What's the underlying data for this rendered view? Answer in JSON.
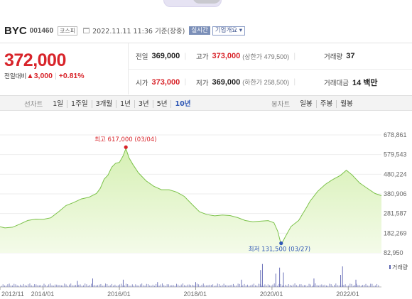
{
  "stock": {
    "name": "BYC",
    "code": "001460",
    "market": "코스피",
    "datetime": "2022.11.11 11:36",
    "basis": "기준(장중)",
    "realtime_badge": "실시간",
    "company_menu": "기업개요 ▾"
  },
  "quote": {
    "price": "372,000",
    "change_label": "전일대비",
    "change_arrow": "▲",
    "change_amount": "3,000",
    "change_pct": "+0.81%",
    "stats": [
      [
        {
          "label": "전일",
          "value": "369,000",
          "sub": "",
          "up": false
        },
        {
          "label": "고가",
          "value": "373,000",
          "sub": "(상한가 479,500)",
          "up": true
        },
        {
          "label": "거래량",
          "value": "37",
          "sub": "",
          "up": false
        }
      ],
      [
        {
          "label": "시가",
          "value": "373,000",
          "sub": "",
          "up": true
        },
        {
          "label": "저가",
          "value": "369,000",
          "sub": "(하한가 258,500)",
          "up": false
        },
        {
          "label": "거래대금",
          "value": "14 백만",
          "sub": "",
          "up": false
        }
      ]
    ]
  },
  "periods": {
    "line_label": "선차트",
    "line_items": [
      "1일",
      "1주일",
      "3개월",
      "1년",
      "3년",
      "5년",
      "10년"
    ],
    "active": "10년",
    "candle_label": "봉차트",
    "candle_items": [
      "일봉",
      "주봉",
      "월봉"
    ]
  },
  "chart_data": {
    "type": "area",
    "title": "",
    "x_tick_labels": [
      "2012/11",
      "2014/01",
      "2016/01",
      "2018/01",
      "2020/01",
      "2022/01"
    ],
    "x_tick_years": [
      2012.87,
      2014.0,
      2016.0,
      2018.0,
      2020.0,
      2022.0
    ],
    "xlim": [
      2012.87,
      2022.87
    ],
    "y_tick_labels": [
      "678,861",
      "579,543",
      "480,224",
      "380,906",
      "281,587",
      "182,269",
      "82,950"
    ],
    "ylim": [
      82950,
      678861
    ],
    "series": [
      {
        "x": [
          2012.87,
          2013.0,
          2013.2,
          2013.4,
          2013.6,
          2013.8,
          2014.0,
          2014.2,
          2014.4,
          2014.6,
          2014.8,
          2015.0,
          2015.2,
          2015.4,
          2015.5,
          2015.6,
          2015.7,
          2015.8,
          2015.9,
          2016.0,
          2016.1,
          2016.17,
          2016.25,
          2016.35,
          2016.5,
          2016.7,
          2016.9,
          2017.1,
          2017.3,
          2017.5,
          2017.7,
          2017.9,
          2018.1,
          2018.3,
          2018.5,
          2018.7,
          2018.9,
          2019.1,
          2019.3,
          2019.5,
          2019.7,
          2019.9,
          2020.05,
          2020.15,
          2020.24,
          2020.35,
          2020.5,
          2020.7,
          2020.9,
          2021.0,
          2021.2,
          2021.4,
          2021.6,
          2021.8,
          2021.95,
          2022.1,
          2022.3,
          2022.5,
          2022.7,
          2022.87
        ],
        "values": [
          215000,
          218000,
          222000,
          230000,
          238000,
          243000,
          250000,
          268000,
          300000,
          325000,
          330000,
          345000,
          360000,
          390000,
          420000,
          460000,
          470000,
          505000,
          530000,
          545000,
          585000,
          617000,
          560000,
          520000,
          480000,
          450000,
          430000,
          410000,
          400000,
          380000,
          360000,
          330000,
          300000,
          285000,
          270000,
          265000,
          262000,
          260000,
          255000,
          250000,
          245000,
          238000,
          225000,
          190000,
          131500,
          175000,
          220000,
          240000,
          300000,
          340000,
          400000,
          440000,
          460000,
          470000,
          490000,
          470000,
          440000,
          420000,
          390000,
          372000
        ]
      }
    ],
    "max_annotation": "최고 617,000 (03/04)",
    "min_annotation": "최저 131,500 (03/27)",
    "volume_label": "거래량",
    "volume_spikes": [
      [
        2014.9,
        0.25
      ],
      [
        2015.3,
        0.35
      ],
      [
        2016.1,
        0.3
      ],
      [
        2017.0,
        0.2
      ],
      [
        2018.0,
        0.2
      ],
      [
        2019.2,
        0.3
      ],
      [
        2019.7,
        0.7
      ],
      [
        2019.75,
        0.95
      ],
      [
        2020.1,
        0.55
      ],
      [
        2020.2,
        0.8
      ],
      [
        2020.3,
        0.6
      ],
      [
        2021.1,
        0.35
      ],
      [
        2021.8,
        0.5
      ],
      [
        2021.85,
        0.85
      ],
      [
        2022.2,
        0.3
      ]
    ]
  },
  "colors": {
    "up": "#d8242a",
    "down": "#2e57b5",
    "line": "#7cc24a",
    "fill_top": "#d6f0b4",
    "fill_bottom": "#f4fbe9"
  }
}
